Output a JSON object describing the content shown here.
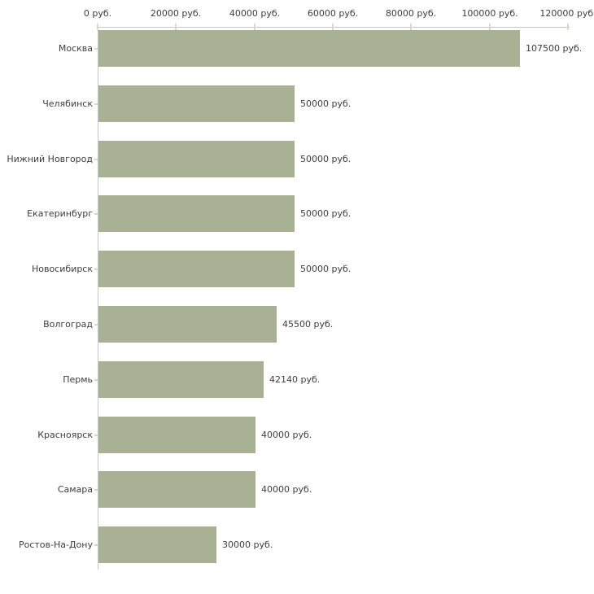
{
  "chart_data": {
    "type": "bar",
    "orientation": "horizontal",
    "title": "",
    "xlabel": "",
    "ylabel": "",
    "grid": false,
    "legend": false,
    "categories": [
      "Москва",
      "Челябинск",
      "Нижний Новгород",
      "Екатеринбург",
      "Новосибирск",
      "Волгоград",
      "Пермь",
      "Красноярск",
      "Самара",
      "Ростов-На-Дону"
    ],
    "values": [
      107500,
      50000,
      50000,
      50000,
      50000,
      45500,
      42140,
      40000,
      40000,
      30000
    ],
    "value_labels": [
      "107500 руб.",
      "50000 руб.",
      "50000 руб.",
      "50000 руб.",
      "50000 руб.",
      "45500 руб.",
      "42140 руб.",
      "40000 руб.",
      "40000 руб.",
      "30000 руб."
    ],
    "x_ticks": [
      0,
      20000,
      40000,
      60000,
      80000,
      100000,
      120000
    ],
    "x_tick_labels": [
      "0 руб.",
      "20000 руб.",
      "40000 руб.",
      "60000 руб.",
      "80000 руб.",
      "100000 руб.",
      "120000 руб."
    ],
    "xlim": [
      0,
      120000
    ],
    "unit": "руб.",
    "colors": {
      "bar": "#a8b194",
      "axis_line": "#c6c6c6",
      "tick": "#d9dbc0",
      "text": "#3d3d3d",
      "background": "#ffffff"
    }
  }
}
